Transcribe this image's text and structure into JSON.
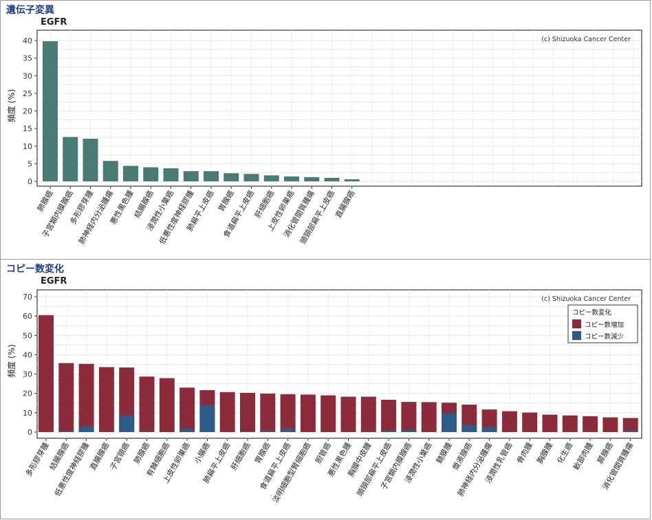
{
  "sections": {
    "mutation": {
      "title": "遺伝子変異",
      "gene": "EGFR"
    },
    "cnv": {
      "title": "コピー数変化",
      "gene": "EGFR"
    }
  },
  "chart_data": [
    {
      "type": "bar",
      "title": "EGFR",
      "ylabel": "頻度 (%)",
      "xlabel": "",
      "ylim": [
        0,
        40
      ],
      "yticks": [
        0,
        5,
        10,
        15,
        20,
        25,
        30,
        35,
        40
      ],
      "grid": true,
      "watermark": "(c) Shizuoka Cancer Center",
      "bar_color": "#4a7a74",
      "categories": [
        "肺腺癌",
        "子宮類内膜腺癌",
        "多形膠芽腫",
        "肺神経内分泌腫瘍",
        "悪性黒色腫",
        "結腸腺癌",
        "浸潤性小葉癌",
        "低悪性度神経膠腫",
        "肺扁平上皮癌",
        "胃腺癌",
        "食道扁平上皮癌",
        "肝細胞癌",
        "上皮性卵巣癌",
        "消化管間質腫瘍",
        "頭頸部扁平上皮癌",
        "直腸腺癌"
      ],
      "values": [
        39.8,
        12.6,
        12.1,
        5.8,
        4.4,
        4.0,
        3.7,
        2.9,
        2.9,
        2.3,
        2.1,
        1.7,
        1.4,
        1.2,
        1.0,
        0.6
      ]
    },
    {
      "type": "bar",
      "stacked": true,
      "title": "EGFR",
      "ylabel": "頻度 (%)",
      "xlabel": "",
      "ylim": [
        0,
        70
      ],
      "yticks": [
        0,
        10,
        20,
        30,
        40,
        50,
        60,
        70
      ],
      "grid": true,
      "watermark": "(c) Shizuoka Cancer Center",
      "legend": {
        "title": "コピー数変化",
        "position": "top-right"
      },
      "categories": [
        "多形膠芽腫",
        "結腸腺癌",
        "低悪性度神経膠腫",
        "直腸腺癌",
        "子宮頸癌",
        "肺腺癌",
        "有棘細胞癌",
        "上皮性卵巣癌",
        "小腸癌",
        "肺扁平上皮癌",
        "肝細胞癌",
        "胃腺癌",
        "食道扁平上皮癌",
        "淡明細胞型腎細胞癌",
        "胆管癌",
        "悪性黒色腫",
        "胸膜中皮腫",
        "頭頸部扁平上皮癌",
        "子宮類内膜腺癌",
        "浸潤性小葉癌",
        "髄膜腫",
        "漿液腺癌",
        "肺神経内分泌腫瘍",
        "浸潤性乳管癌",
        "骨肉腫",
        "胸腺腫",
        "化生癌",
        "軟部肉腫",
        "膵腺癌",
        "消化管間質腫瘍"
      ],
      "series": [
        {
          "name": "コピー数増加",
          "color": "#8e2b3b",
          "values": [
            60.5,
            35.1,
            32.2,
            33.6,
            24.9,
            28.2,
            27.9,
            21.3,
            7.7,
            20.7,
            20.0,
            19.1,
            17.7,
            19.4,
            19.0,
            18.3,
            18.3,
            15.9,
            14.4,
            15.5,
            5.2,
            10.5,
            9.0,
            10.8,
            10.1,
            9.0,
            8.6,
            8.2,
            7.6,
            6.4
          ]
        },
        {
          "name": "コピー数減少",
          "color": "#2d5a87",
          "values": [
            0.0,
            0.6,
            3.1,
            0.0,
            8.5,
            0.5,
            0.0,
            1.7,
            14.0,
            0.0,
            0.3,
            0.8,
            1.9,
            0.0,
            0.0,
            0.0,
            0.0,
            0.8,
            1.2,
            0.0,
            10.0,
            3.7,
            2.7,
            0.0,
            0.0,
            0.0,
            0.0,
            0.0,
            0.0,
            0.9
          ]
        }
      ]
    }
  ]
}
